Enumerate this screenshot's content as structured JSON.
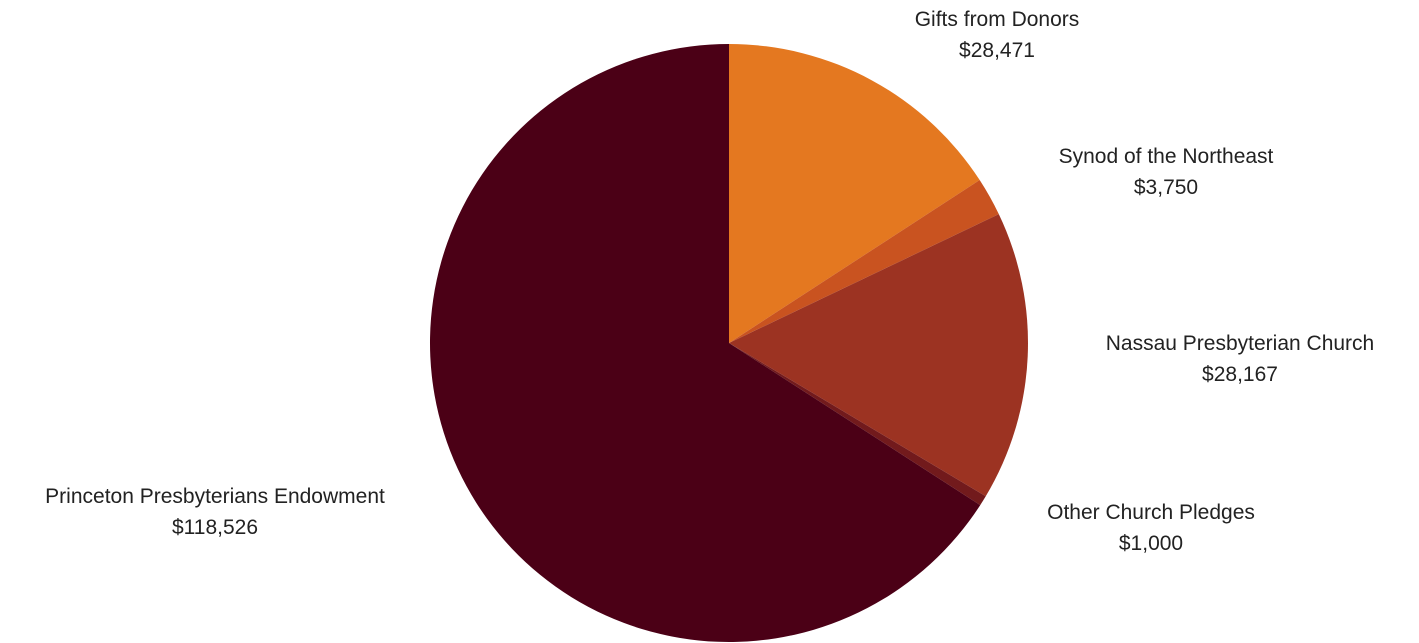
{
  "chart_data": {
    "type": "pie",
    "title": "",
    "start_angle_deg": 0,
    "direction": "clockwise",
    "slices": [
      {
        "name": "Gifts from Donors",
        "value": 28471,
        "value_label": "$28,471",
        "color": "#e47820"
      },
      {
        "name": "Synod of the Northeast",
        "value": 3750,
        "value_label": "$3,750",
        "color": "#c95320"
      },
      {
        "name": "Nassau Presbyterian Church",
        "value": 28167,
        "value_label": "$28,167",
        "color": "#9c3322"
      },
      {
        "name": "Other Church Pledges",
        "value": 1000,
        "value_label": "$1,000",
        "color": "#721a1c"
      },
      {
        "name": "Princeton Presbyterians Endowment",
        "value": 118526,
        "value_label": "$118,526",
        "color": "#4b0016"
      }
    ]
  }
}
